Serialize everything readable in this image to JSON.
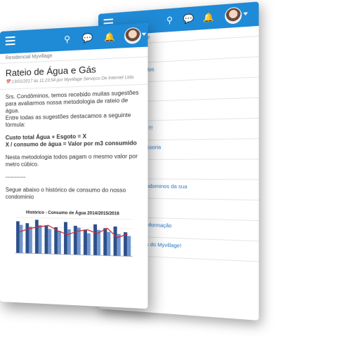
{
  "back_phone": {
    "header": {
      "menu_icon": "hamburger-icon",
      "search_icon": "search-icon",
      "chat_icon": "chat-icon",
      "bell_icon": "bell-icon"
    },
    "subtitle": "Residencial Myvillage",
    "items": [
      {
        "title": "Gás",
        "meta": ""
      },
      {
        "title": "se Adm-Comunicados",
        "meta": ""
      },
      {
        "title": "ência",
        "meta": ""
      },
      {
        "title": "agens!",
        "meta": ""
      },
      {
        "title": "ados com imagens !!!",
        "meta": ""
      },
      {
        "title": "village - EMC Assessoria",
        "meta": ""
      },
      {
        "title": "s",
        "meta": ""
      },
      {
        "title": "s agora para os condominos da sua",
        "meta": ""
      },
      {
        "title": "namento URL",
        "meta": ""
      },
      {
        "title": "evam dereto para informação",
        "meta": ""
      },
      {
        "title": "e segurança atavés do Myvillage!",
        "meta": ""
      }
    ]
  },
  "front_phone": {
    "subtitle": "Residencial Myvillage",
    "title": "Rateio de Água e Gás",
    "meta": "13/01/2017 às 11:23:54 por Myvillage Serviços De Internet Ltda",
    "paragraph1": "Srs. Condôminos, temos recebido muitas sugestões para avaliarmos nossa metodologia de rateio de água.",
    "paragraph1b": "Entre todas as sugestões destacamos a seguinte fórmula:",
    "formula1": "Custo total Água + Esgoto = X",
    "formula2": "X / consumo de água = Valor por m3 consumido",
    "paragraph2": "Nesta metodologia todos pagam o mesmo valor por metro cúbico.",
    "separator": "-----------",
    "paragraph3": "Segue abaixo o histórico de consumo do nosso condominio"
  },
  "chart_data": {
    "type": "bar",
    "title": "Histórico - Consumo de Água 2014/2015/2016",
    "series": [
      {
        "values": [
          9,
          8.5,
          9.5,
          8,
          7.5,
          9,
          8,
          7,
          8.5,
          7.5,
          8,
          6.5
        ]
      },
      {
        "values": [
          8,
          7.5,
          8,
          7,
          6.5,
          7,
          7.5,
          6,
          7,
          6.5,
          6,
          5.5
        ]
      },
      {
        "values": [
          6,
          7,
          7.5,
          8,
          6.5,
          5.5,
          6.5,
          7,
          6,
          7.5,
          5,
          6
        ]
      }
    ],
    "ylim": [
      0,
      10
    ],
    "colors": {
      "bar1": "#2c4f8a",
      "bar2": "#6f95cf",
      "line": "#d7262b"
    }
  },
  "colors": {
    "brand_blue": "#1f8ad6",
    "link": "#2a78c2"
  }
}
